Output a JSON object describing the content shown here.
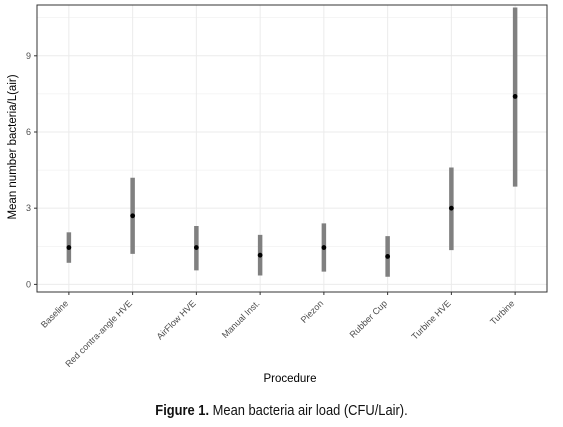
{
  "chart_data": {
    "type": "errorbar",
    "xlabel": "Procedure",
    "ylabel": "Mean number bacteria/L(air)",
    "ylim": [
      -0.3,
      11.0
    ],
    "yticks": [
      0,
      3,
      6,
      9
    ],
    "grid": true,
    "categories": [
      "Baseline",
      "Red contra-angle HVE",
      "AirFlow HVE",
      "Manual Inst.",
      "Piezon",
      "Rubber Cup",
      "Turbine HVE",
      "Turbine"
    ],
    "mean": [
      1.45,
      2.7,
      1.45,
      1.15,
      1.45,
      1.1,
      3.0,
      7.4
    ],
    "lower": [
      0.85,
      1.2,
      0.55,
      0.35,
      0.5,
      0.3,
      1.35,
      3.85
    ],
    "upper": [
      2.05,
      4.2,
      2.3,
      1.95,
      2.4,
      1.9,
      4.6,
      10.9
    ],
    "colors": {
      "bar": "#808080",
      "point": "#000000",
      "grid": "#ebebeb",
      "panel_border": "#333333"
    }
  },
  "caption": {
    "label": "Figure 1.",
    "text": "Mean bacteria air load (CFU/Lair)."
  }
}
